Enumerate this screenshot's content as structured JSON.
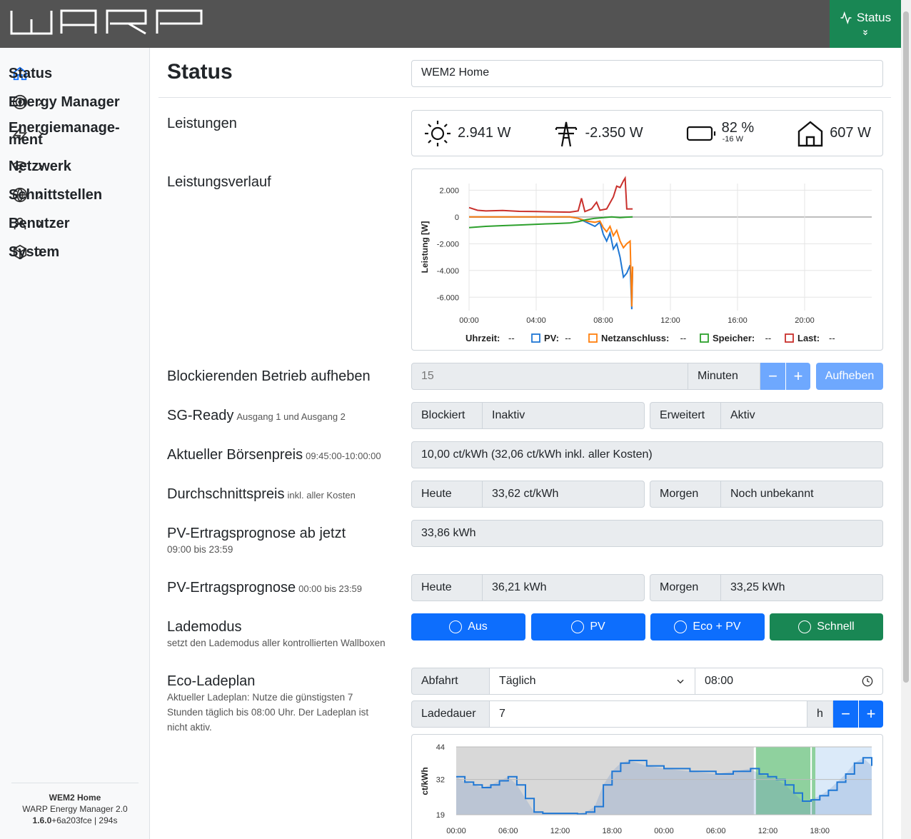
{
  "header": {
    "status_label": "Status"
  },
  "sidebar": {
    "items": [
      {
        "label": "Status",
        "active": true,
        "icon": "home-icon"
      },
      {
        "label": "Energy Manager",
        "icon": "target-icon"
      },
      {
        "label": "Energiemanage-ment",
        "line1": "Energiemanage-",
        "line2": "ment",
        "icon": "bolt-icon"
      },
      {
        "label": "Netzwerk",
        "icon": "wifi-icon"
      },
      {
        "label": "Schnittstellen",
        "icon": "globe-icon"
      },
      {
        "label": "Benutzer",
        "icon": "user-icon"
      },
      {
        "label": "System",
        "icon": "box-icon"
      }
    ],
    "footer": {
      "name": "WEM2 Home",
      "product": "WARP Energy Manager 2.0",
      "version_bold": "1.6.0",
      "version_rest": "+6a203fce | 294s"
    }
  },
  "page": {
    "title": "Status",
    "device_name": "WEM2 Home"
  },
  "leistungen": {
    "label": "Leistungen",
    "pv": "2.941 W",
    "grid": "-2.350 W",
    "battery_soc": "82 %",
    "battery_power": "-16 W",
    "home": "607 W"
  },
  "verlauf": {
    "label": "Leistungsverlauf",
    "legend": {
      "time_label": "Uhrzeit:",
      "time_value": "--",
      "pv_label": "PV:",
      "pv_value": "--",
      "grid_label": "Netzanschluss:",
      "grid_value": "--",
      "storage_label": "Speicher:",
      "storage_value": "--",
      "load_label": "Last:",
      "load_value": "--"
    }
  },
  "blocking": {
    "label": "Blockierenden Betrieb aufheben",
    "value": "15",
    "unit": "Minuten",
    "button": "Aufheben"
  },
  "sgready": {
    "label": "SG-Ready",
    "sub": "Ausgang 1 und Ausgang 2",
    "k1": "Blockiert",
    "v1": "Inaktiv",
    "k2": "Erweitert",
    "v2": "Aktiv"
  },
  "boerse": {
    "label": "Aktueller Börsenpreis",
    "sub": "09:45:00-10:00:00",
    "value": "10,00 ct/kWh (32,06 ct/kWh inkl. aller Kosten)"
  },
  "avg": {
    "label": "Durchschnittspreis",
    "sub": "inkl. aller Kosten",
    "k1": "Heute",
    "v1": "33,62 ct/kWh",
    "k2": "Morgen",
    "v2": "Noch unbekannt"
  },
  "pvnow": {
    "label": "PV-Ertragsprognose ab jetzt",
    "sub": "09:00 bis 23:59",
    "value": "33,86 kWh"
  },
  "pvprog": {
    "label": "PV-Ertragsprognose",
    "sub": "00:00 bis 23:59",
    "k1": "Heute",
    "v1": "36,21 kWh",
    "k2": "Morgen",
    "v2": "33,25 kWh"
  },
  "lademodus": {
    "label": "Lademodus",
    "sub": "setzt den Lademodus aller kontrollierten Wallboxen",
    "modes": [
      "Aus",
      "PV",
      "Eco + PV",
      "Schnell"
    ]
  },
  "eco": {
    "label": "Eco-Ladeplan",
    "sub": "Aktueller Ladeplan: Nutze die günstigsten 7 Stunden täglich bis 08:00 Uhr. Der Ladeplan ist nicht aktiv.",
    "abfahrt_label": "Abfahrt",
    "abfahrt_value": "Täglich",
    "time_value": "08:00",
    "dauer_label": "Ladedauer",
    "dauer_value": "7",
    "dauer_unit": "h"
  },
  "chart_data": [
    {
      "type": "line",
      "ylabel": "Leistung [W]",
      "x_ticks": [
        "00:00",
        "04:00",
        "08:00",
        "12:00",
        "16:00",
        "20:00"
      ],
      "y_ticks": [
        "2.000",
        "0",
        "-2.000",
        "-4.000",
        "-6.000"
      ],
      "ylim": [
        -7000,
        2500
      ],
      "xlim_hours": [
        0,
        24
      ],
      "series": [
        {
          "name": "PV",
          "color": "#1f77d4",
          "points": [
            [
              0,
              0
            ],
            [
              3,
              0
            ],
            [
              6,
              0
            ],
            [
              6.5,
              -100
            ],
            [
              7,
              -400
            ],
            [
              7.5,
              -700
            ],
            [
              7.8,
              -400
            ],
            [
              8,
              -1300
            ],
            [
              8.2,
              -1800
            ],
            [
              8.4,
              -1200
            ],
            [
              8.6,
              -2400
            ],
            [
              8.8,
              -2000
            ],
            [
              9,
              -3000
            ],
            [
              9.2,
              -4500
            ],
            [
              9.4,
              -4200
            ],
            [
              9.6,
              -3600
            ],
            [
              9.7,
              -6900
            ],
            [
              9.75,
              -3800
            ]
          ]
        },
        {
          "name": "Netzanschluss",
          "color": "#ff7f0e",
          "points": [
            [
              0,
              0
            ],
            [
              3,
              0
            ],
            [
              6,
              0
            ],
            [
              6.5,
              -100
            ],
            [
              7,
              -300
            ],
            [
              7.5,
              -400
            ],
            [
              7.8,
              -300
            ],
            [
              8,
              -800
            ],
            [
              8.2,
              -1100
            ],
            [
              8.4,
              -700
            ],
            [
              8.6,
              -1400
            ],
            [
              8.8,
              -1000
            ],
            [
              9,
              -1800
            ],
            [
              9.2,
              -2300
            ],
            [
              9.4,
              -2000
            ],
            [
              9.6,
              -1800
            ],
            [
              9.7,
              -6700
            ],
            [
              9.75,
              -3700
            ]
          ]
        },
        {
          "name": "Speicher",
          "color": "#2ca02c",
          "points": [
            [
              0,
              -800
            ],
            [
              1,
              -700
            ],
            [
              2,
              -650
            ],
            [
              3,
              -600
            ],
            [
              4,
              -550
            ],
            [
              5,
              -500
            ],
            [
              6,
              -450
            ],
            [
              6.5,
              -350
            ],
            [
              7,
              -200
            ],
            [
              7.5,
              -100
            ],
            [
              8,
              -50
            ],
            [
              8.5,
              0
            ],
            [
              9,
              -50
            ],
            [
              9.3,
              -20
            ],
            [
              9.75,
              0
            ]
          ]
        },
        {
          "name": "Last",
          "color": "#c9302c",
          "points": [
            [
              0,
              700
            ],
            [
              0.5,
              500
            ],
            [
              1,
              450
            ],
            [
              2,
              480
            ],
            [
              3,
              420
            ],
            [
              4,
              400
            ],
            [
              5,
              380
            ],
            [
              6,
              360
            ],
            [
              6.5,
              450
            ],
            [
              6.7,
              1400
            ],
            [
              6.9,
              400
            ],
            [
              7.3,
              600
            ],
            [
              7.6,
              1100
            ],
            [
              7.8,
              500
            ],
            [
              8.2,
              600
            ],
            [
              8.6,
              1500
            ],
            [
              8.8,
              2300
            ],
            [
              9,
              2200
            ],
            [
              9.2,
              2700
            ],
            [
              9.3,
              2900
            ],
            [
              9.4,
              600
            ],
            [
              9.75,
              600
            ]
          ]
        }
      ]
    },
    {
      "type": "area",
      "ylabel": "ct/kWh",
      "x_ticks": [
        "00:00",
        "06:00",
        "12:00",
        "18:00",
        "00:00",
        "06:00",
        "12:00",
        "18:00"
      ],
      "y_ticks": [
        "44",
        "32",
        "19"
      ],
      "ylim": [
        19,
        44
      ],
      "xlim_hours": [
        0,
        48
      ],
      "points": [
        [
          0,
          33
        ],
        [
          1,
          31
        ],
        [
          2,
          30
        ],
        [
          3,
          29
        ],
        [
          4,
          30
        ],
        [
          5,
          31.5
        ],
        [
          6,
          33
        ],
        [
          7,
          30
        ],
        [
          8,
          25
        ],
        [
          9,
          20
        ],
        [
          10,
          19.5
        ],
        [
          12,
          19.5
        ],
        [
          14,
          19.3
        ],
        [
          15,
          20
        ],
        [
          16,
          22
        ],
        [
          17,
          30
        ],
        [
          18,
          35
        ],
        [
          19,
          38
        ],
        [
          20,
          39
        ],
        [
          22,
          37
        ],
        [
          24,
          36
        ],
        [
          27,
          35
        ],
        [
          30,
          34
        ],
        [
          32,
          35
        ],
        [
          34,
          36
        ],
        [
          35,
          34
        ],
        [
          36,
          33
        ],
        [
          37,
          32
        ],
        [
          38,
          30
        ],
        [
          39,
          27
        ],
        [
          40,
          24
        ],
        [
          41,
          24.5
        ],
        [
          42,
          26
        ],
        [
          43,
          28
        ],
        [
          44,
          31
        ],
        [
          45,
          34
        ],
        [
          46,
          38
        ],
        [
          47,
          40
        ],
        [
          48,
          37
        ]
      ]
    }
  ]
}
